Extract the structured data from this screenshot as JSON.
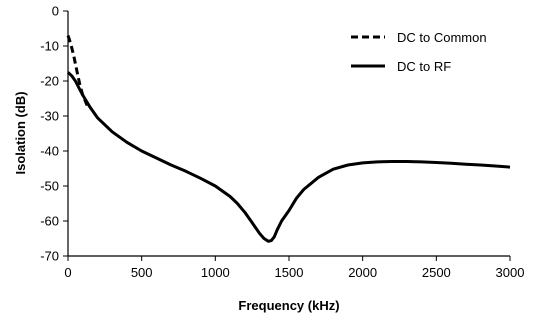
{
  "chart_data": {
    "type": "line",
    "xlabel": "Frequency (kHz)",
    "ylabel": "Isolation (dB)",
    "xlim": [
      0,
      3000
    ],
    "ylim": [
      -70,
      0
    ],
    "xticks": [
      "0",
      "500",
      "1000",
      "1500",
      "2000",
      "2500",
      "3000"
    ],
    "yticks": [
      "0",
      "-10",
      "-20",
      "-30",
      "-40",
      "-50",
      "-60",
      "-70"
    ],
    "grid": false,
    "legend_position": "top-right",
    "series": [
      {
        "name": "DC to Common",
        "style": "dashed",
        "color": "#000000",
        "x": [
          0,
          20,
          40,
          60,
          80,
          100,
          130
        ],
        "y": [
          -7,
          -9.5,
          -13,
          -17,
          -21,
          -24,
          -27
        ]
      },
      {
        "name": "DC to RF",
        "style": "solid",
        "color": "#000000",
        "x": [
          0,
          25,
          50,
          75,
          100,
          150,
          200,
          300,
          400,
          500,
          600,
          700,
          800,
          900,
          1000,
          1100,
          1150,
          1200,
          1250,
          1300,
          1330,
          1360,
          1380,
          1400,
          1420,
          1450,
          1500,
          1550,
          1600,
          1700,
          1800,
          1900,
          2000,
          2100,
          2200,
          2300,
          2400,
          2500,
          2600,
          2700,
          2800,
          2900,
          3000
        ],
        "y": [
          -17.5,
          -18.5,
          -20,
          -22,
          -24,
          -27.5,
          -30.5,
          -34.5,
          -37.5,
          -40,
          -42,
          -44,
          -45.8,
          -47.8,
          -50,
          -53,
          -55,
          -57.5,
          -60.5,
          -63.5,
          -65,
          -65.8,
          -65.6,
          -64.5,
          -62.5,
          -60,
          -57,
          -53.5,
          -51,
          -47.5,
          -45.2,
          -44,
          -43.4,
          -43.1,
          -43,
          -43,
          -43.1,
          -43.3,
          -43.5,
          -43.8,
          -44,
          -44.3,
          -44.6
        ]
      }
    ]
  }
}
